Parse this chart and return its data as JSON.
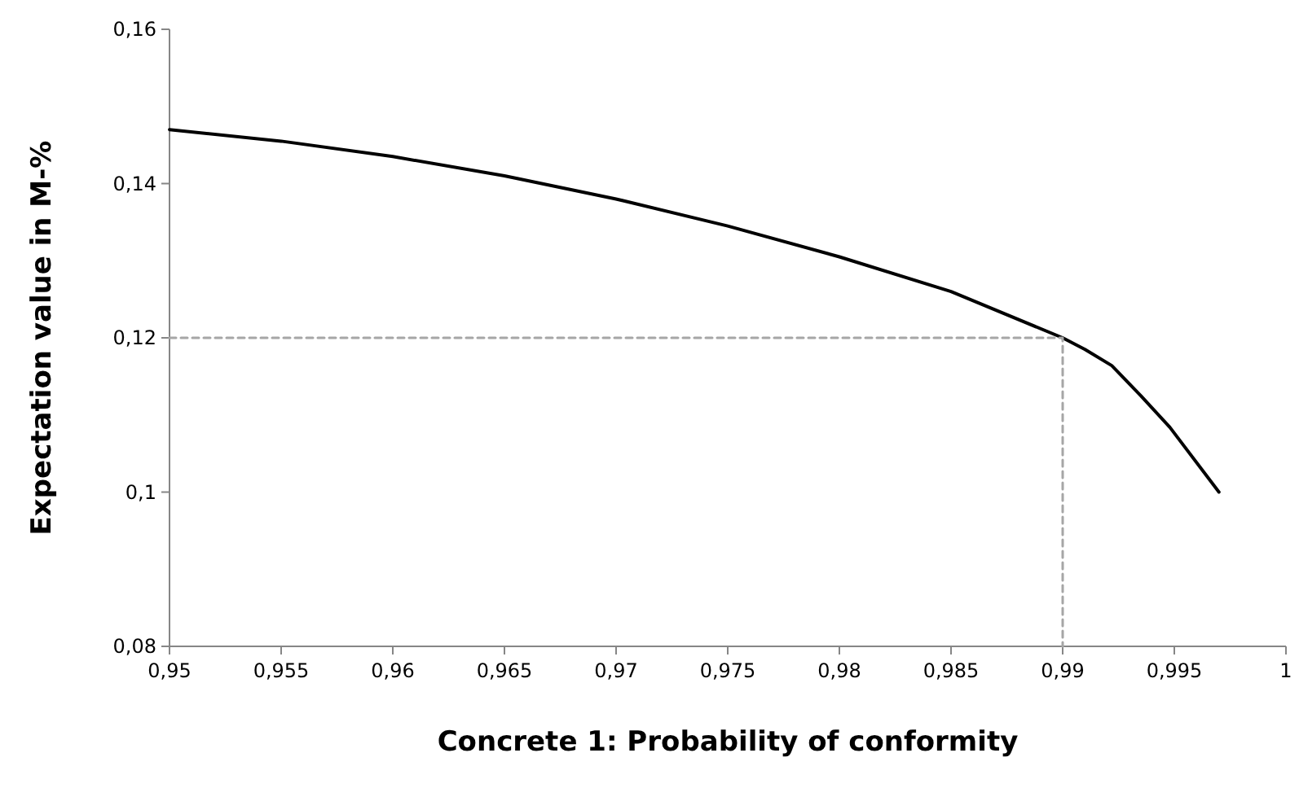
{
  "chart_data": {
    "type": "line",
    "xlabel": "Concrete 1: Probability of conformity",
    "ylabel": "Expectation value in M-%",
    "xlim": [
      0.95,
      1
    ],
    "ylim": [
      0.08,
      0.16
    ],
    "xticks": [
      {
        "value": 0.95,
        "label": "0,95"
      },
      {
        "value": 0.955,
        "label": "0,955"
      },
      {
        "value": 0.96,
        "label": "0,96"
      },
      {
        "value": 0.965,
        "label": "0,965"
      },
      {
        "value": 0.97,
        "label": "0,97"
      },
      {
        "value": 0.975,
        "label": "0,975"
      },
      {
        "value": 0.98,
        "label": "0,98"
      },
      {
        "value": 0.985,
        "label": "0,985"
      },
      {
        "value": 0.99,
        "label": "0,99"
      },
      {
        "value": 0.995,
        "label": "0,995"
      },
      {
        "value": 1,
        "label": "1"
      }
    ],
    "yticks": [
      {
        "value": 0.08,
        "label": "0,08"
      },
      {
        "value": 0.1,
        "label": "0,1"
      },
      {
        "value": 0.12,
        "label": "0,12"
      },
      {
        "value": 0.14,
        "label": "0,14"
      },
      {
        "value": 0.16,
        "label": "0,16"
      }
    ],
    "grid": false,
    "marker": "none",
    "series": [
      {
        "color": "#000000",
        "line_style": "solid",
        "x": [
          0.95,
          0.955,
          0.96,
          0.965,
          0.97,
          0.975,
          0.98,
          0.985,
          0.99,
          0.991,
          0.9922,
          0.9935,
          0.9948,
          0.997
        ],
        "values": [
          0.147,
          0.1455,
          0.1435,
          0.141,
          0.138,
          0.1345,
          0.1305,
          0.126,
          0.12,
          0.1185,
          0.1164,
          0.1125,
          0.1084,
          0.1
        ]
      },
      {
        "color": "#a6a6a6",
        "line_style": "dashed",
        "x": [
          0.95,
          0.99,
          0.99
        ],
        "values": [
          0.12,
          0.12,
          0.08
        ]
      }
    ]
  }
}
